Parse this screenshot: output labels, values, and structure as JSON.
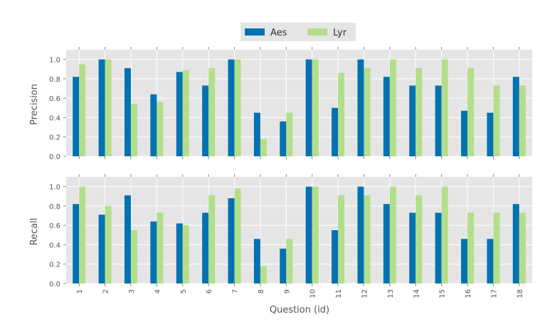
{
  "chart_data": {
    "type": "bar",
    "xlabel": "Question (id)",
    "categories": [
      "1",
      "2",
      "3",
      "4",
      "5",
      "6",
      "7",
      "8",
      "9",
      "10",
      "11",
      "12",
      "13",
      "14",
      "15",
      "16",
      "17",
      "18"
    ],
    "legend": {
      "placement": "top-center",
      "entries": [
        "Aes",
        "Lyr"
      ]
    },
    "colors": {
      "Aes": "#0072b2",
      "Lyr": "#b3de8a",
      "plot_background": "#e5e5e5",
      "grid": "#ffffff"
    },
    "grid": true,
    "panels": [
      {
        "ylabel": "Precision",
        "ylim": [
          0,
          1.1
        ],
        "yticks": [
          "0.0",
          "0.2",
          "0.4",
          "0.6",
          "0.8",
          "1.0"
        ],
        "series": [
          {
            "name": "Aes",
            "values": [
              0.82,
              1.0,
              0.91,
              0.64,
              0.87,
              0.73,
              1.0,
              0.45,
              0.36,
              1.0,
              0.5,
              1.0,
              0.82,
              0.73,
              0.73,
              0.47,
              0.45,
              0.82
            ]
          },
          {
            "name": "Lyr",
            "values": [
              0.95,
              1.0,
              0.54,
              0.56,
              0.89,
              0.91,
              1.0,
              0.18,
              0.45,
              1.0,
              0.86,
              0.91,
              1.0,
              0.91,
              1.0,
              0.91,
              0.73,
              0.73
            ]
          }
        ]
      },
      {
        "ylabel": "Recall",
        "ylim": [
          0,
          1.1
        ],
        "yticks": [
          "0.0",
          "0.2",
          "0.4",
          "0.6",
          "0.8",
          "1.0"
        ],
        "series": [
          {
            "name": "Aes",
            "values": [
              0.82,
              0.71,
              0.91,
              0.64,
              0.62,
              0.73,
              0.88,
              0.46,
              0.36,
              1.0,
              0.55,
              1.0,
              0.82,
              0.73,
              0.73,
              0.46,
              0.46,
              0.82
            ]
          },
          {
            "name": "Lyr",
            "values": [
              1.0,
              0.8,
              0.55,
              0.73,
              0.6,
              0.91,
              0.98,
              0.18,
              0.46,
              1.0,
              0.91,
              0.91,
              1.0,
              0.91,
              1.0,
              0.73,
              0.73,
              0.73
            ]
          }
        ]
      }
    ]
  }
}
